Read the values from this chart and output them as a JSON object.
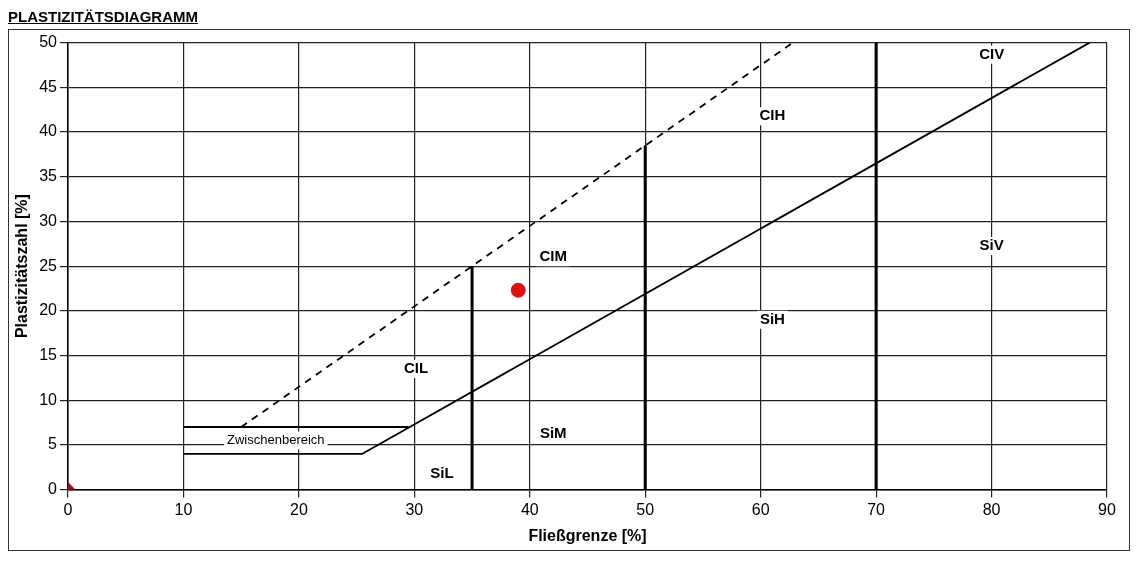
{
  "chart_data": {
    "type": "line",
    "title": "PLASTIZITÄTSDIAGRAMM",
    "xlabel": "Fließgrenze [%]",
    "ylabel": "Plastizitätszahl [%]",
    "xlim": [
      0,
      90
    ],
    "xticks": [
      0,
      10,
      20,
      30,
      40,
      50,
      60,
      70,
      80,
      90
    ],
    "ylim": [
      0,
      50
    ],
    "yticks": [
      0,
      5,
      10,
      15,
      20,
      25,
      30,
      35,
      40,
      45,
      50
    ],
    "grid": true,
    "legend": false,
    "series": [
      {
        "color": "#000000",
        "line_style": "solid",
        "x": [
          10,
          25.5,
          88.5
        ],
        "values": [
          4,
          4,
          50
        ]
      },
      {
        "color": "#000000",
        "line_style": "solid",
        "x": [
          10,
          29.5
        ],
        "values": [
          7,
          7
        ]
      },
      {
        "color": "#000000",
        "line_style": "dashed",
        "x": [
          15,
          62.8
        ],
        "values": [
          7,
          50
        ]
      },
      {
        "color": "#000000",
        "line_style": "solid",
        "x": [
          35,
          35
        ],
        "values": [
          0,
          25
        ]
      },
      {
        "color": "#000000",
        "line_style": "solid",
        "x": [
          50,
          50
        ],
        "values": [
          0,
          38.5
        ]
      },
      {
        "color": "#000000",
        "line_style": "solid",
        "x": [
          70,
          70
        ],
        "values": [
          0,
          50
        ]
      },
      {
        "type": "scatter",
        "color": "#e01010",
        "marker": "circle",
        "x": [
          39
        ],
        "values": [
          22.3
        ]
      },
      {
        "type": "scatter",
        "color": "#a01010",
        "marker": "diamond",
        "x": [
          0
        ],
        "values": [
          0
        ]
      }
    ],
    "annotations": [
      "Zwischenbereich",
      "CIL",
      "SiL",
      "CIM",
      "SiM",
      "CIH",
      "SiH",
      "CIV",
      "SiV"
    ]
  }
}
